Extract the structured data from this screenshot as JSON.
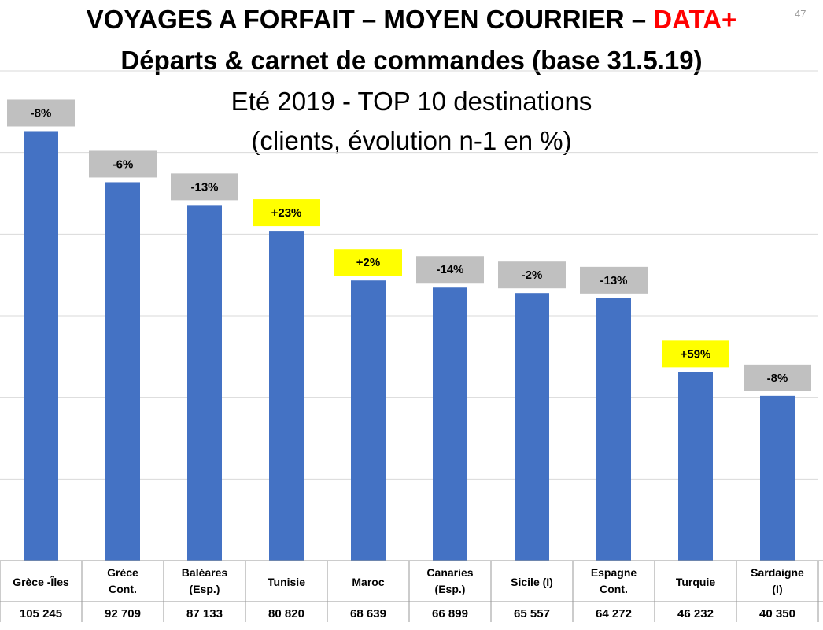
{
  "page_number": "47",
  "title": {
    "line1_prefix": "VOYAGES A FORFAIT – MOYEN COURRIER – ",
    "line1_accent": "DATA+",
    "line2": "Départs & carnet de commandes (base 31.5.19)",
    "line3": "Eté 2019 - TOP 10 destinations",
    "line4": "(clients, évolution n-1 en %)"
  },
  "colors": {
    "bar": "#4472c4",
    "badge_negative": "#c0c0c0",
    "badge_positive": "#ffff00",
    "accent": "#ff0000"
  },
  "chart_data": {
    "type": "bar",
    "categories": [
      [
        "Grèce -Îles"
      ],
      [
        "Grèce",
        "Cont."
      ],
      [
        "Baléares",
        "(Esp.)"
      ],
      [
        "Tunisie"
      ],
      [
        "Maroc"
      ],
      [
        "Canaries",
        "(Esp.)"
      ],
      [
        "Sicile (I)"
      ],
      [
        "Espagne",
        "Cont."
      ],
      [
        "Turquie"
      ],
      [
        "Sardaigne",
        "(I)"
      ]
    ],
    "values": [
      105245,
      92709,
      87133,
      80820,
      68639,
      66899,
      65557,
      64272,
      46232,
      40350
    ],
    "value_labels": [
      "105 245",
      "92 709",
      "87 133",
      "80 820",
      "68 639",
      "66 899",
      "65 557",
      "64 272",
      "46 232",
      "40 350"
    ],
    "evolution": [
      "-8%",
      "-6%",
      "-13%",
      "+23%",
      "+2%",
      "-14%",
      "-2%",
      "-13%",
      "+59%",
      "-8%"
    ],
    "ylim": [
      0,
      120000
    ],
    "grid": true
  }
}
